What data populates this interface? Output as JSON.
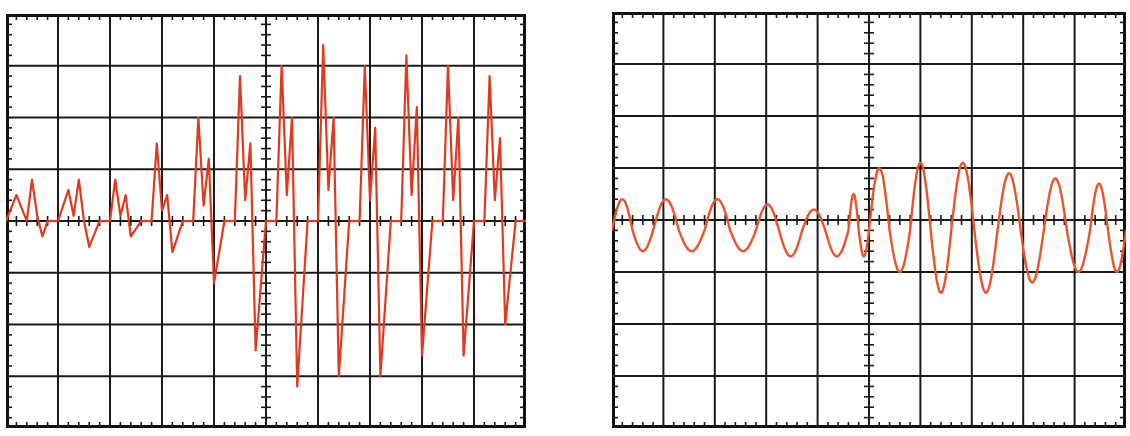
{
  "chart_data": [
    {
      "type": "line",
      "description_role": "oscilloscope-trace",
      "grid": true,
      "grid_divisions": {
        "x": 10,
        "y": 8
      },
      "minor_ticks_per_division": 5,
      "xlim": [
        0,
        10
      ],
      "ylim": [
        -4,
        4
      ],
      "trace_color": "#e03a1e",
      "series": [
        {
          "x": [
            0.0,
            0.2,
            0.4,
            0.5,
            0.6,
            0.7,
            0.8,
            1.0,
            1.2,
            1.3,
            1.4,
            1.5,
            1.6,
            1.8,
            2.0,
            2.1,
            2.2,
            2.3,
            2.4,
            2.6,
            2.8,
            2.9,
            3.0,
            3.1,
            3.2,
            3.4,
            3.6,
            3.7,
            3.8,
            3.9,
            4.0,
            4.2,
            4.4,
            4.5,
            4.6,
            4.7,
            4.8,
            5.0,
            5.2,
            5.3,
            5.4,
            5.5,
            5.6,
            5.8,
            6.0,
            6.1,
            6.2,
            6.3,
            6.4,
            6.6,
            6.8,
            6.9,
            7.0,
            7.1,
            7.2,
            7.4,
            7.6,
            7.7,
            7.8,
            7.9,
            8.0,
            8.2,
            8.4,
            8.5,
            8.6,
            8.7,
            8.8,
            9.0,
            9.2,
            9.3,
            9.4,
            9.5,
            9.6,
            9.8,
            10.0
          ],
          "y": [
            0.0,
            0.5,
            0.0,
            0.8,
            0.1,
            -0.3,
            0.0,
            0.0,
            0.6,
            0.1,
            0.8,
            0.0,
            -0.5,
            0.0,
            0.0,
            0.8,
            0.1,
            0.5,
            -0.3,
            0.0,
            0.0,
            1.5,
            0.2,
            0.5,
            -0.6,
            0.0,
            0.0,
            2.0,
            0.3,
            1.2,
            -1.2,
            0.0,
            0.0,
            2.8,
            0.4,
            1.5,
            -2.5,
            0.0,
            0.0,
            3.0,
            0.5,
            2.0,
            -3.2,
            0.0,
            0.0,
            3.4,
            0.6,
            2.0,
            -3.0,
            0.0,
            0.0,
            3.0,
            0.4,
            1.8,
            -3.0,
            0.0,
            0.0,
            3.2,
            0.5,
            2.2,
            -2.6,
            0.0,
            0.0,
            3.0,
            0.4,
            2.0,
            -2.6,
            0.0,
            0.0,
            2.8,
            0.4,
            1.6,
            -2.0,
            0.0,
            0.0
          ]
        }
      ]
    },
    {
      "type": "line",
      "description_role": "oscilloscope-trace",
      "grid": true,
      "grid_divisions": {
        "x": 10,
        "y": 8
      },
      "minor_ticks_per_division": 5,
      "xlim": [
        0,
        10
      ],
      "ylim": [
        -4,
        4
      ],
      "trace_color": "#e8552b",
      "series": [
        {
          "cycles": [
            {
              "x_start": 0.0,
              "x_end": 0.8,
              "amp_pos": 0.6,
              "amp_neg": 0.4
            },
            {
              "x_start": 0.8,
              "x_end": 1.8,
              "amp_pos": 0.6,
              "amp_neg": 0.4
            },
            {
              "x_start": 1.8,
              "x_end": 2.8,
              "amp_pos": 0.6,
              "amp_neg": 0.4
            },
            {
              "x_start": 2.8,
              "x_end": 3.7,
              "amp_pos": 0.5,
              "amp_neg": 0.5
            },
            {
              "x_start": 3.7,
              "x_end": 4.6,
              "amp_pos": 0.4,
              "amp_neg": 0.5
            },
            {
              "x_start": 4.6,
              "x_end": 5.0,
              "amp_pos": 0.7,
              "amp_neg": 0.5
            },
            {
              "x_start": 5.0,
              "x_end": 5.8,
              "amp_pos": 1.2,
              "amp_neg": 0.8
            },
            {
              "x_start": 5.8,
              "x_end": 6.6,
              "amp_pos": 1.3,
              "amp_neg": 1.2
            },
            {
              "x_start": 6.6,
              "x_end": 7.5,
              "amp_pos": 1.3,
              "amp_neg": 1.2
            },
            {
              "x_start": 7.5,
              "x_end": 8.4,
              "amp_pos": 1.1,
              "amp_neg": 1.0
            },
            {
              "x_start": 8.4,
              "x_end": 9.3,
              "amp_pos": 1.0,
              "amp_neg": 0.8
            },
            {
              "x_start": 9.3,
              "x_end": 10.0,
              "amp_pos": 0.9,
              "amp_neg": 0.8
            }
          ],
          "baseline": -0.2
        }
      ]
    }
  ]
}
